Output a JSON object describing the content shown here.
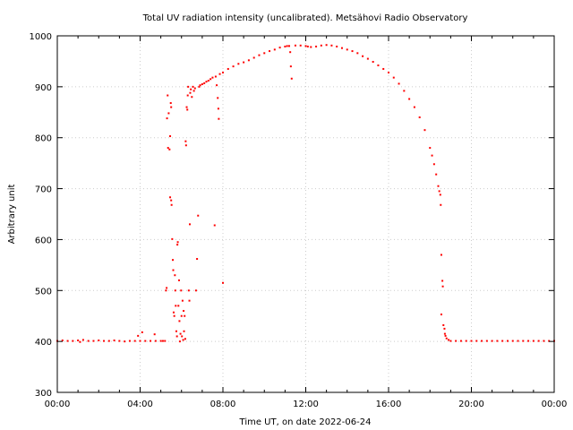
{
  "chart_data": {
    "type": "scatter",
    "title": "Total UV radiation intensity (uncalibrated). Metsähovi Radio Observatory",
    "xlabel": "Time UT, on date 2022-06-24",
    "ylabel": "Arbitrary unit",
    "xlim": [
      0,
      24
    ],
    "ylim": [
      300,
      1000
    ],
    "x_ticks": [
      0,
      4,
      8,
      12,
      16,
      20,
      24
    ],
    "x_tick_labels": [
      "00:00",
      "04:00",
      "08:00",
      "12:00",
      "16:00",
      "20:00",
      "00:00"
    ],
    "y_ticks": [
      300,
      400,
      500,
      600,
      700,
      800,
      900,
      1000
    ],
    "y_tick_labels": [
      "300",
      "400",
      "500",
      "600",
      "700",
      "800",
      "900",
      "1000"
    ],
    "grid": true,
    "legend": "none",
    "series_color": "#ff0000",
    "series": [
      {
        "points": [
          [
            0.0,
            401
          ],
          [
            0.25,
            402
          ],
          [
            0.5,
            401
          ],
          [
            0.75,
            401
          ],
          [
            1.0,
            402
          ],
          [
            1.1,
            399
          ],
          [
            1.25,
            403
          ],
          [
            1.5,
            401
          ],
          [
            1.75,
            401
          ],
          [
            2.0,
            402
          ],
          [
            2.25,
            401
          ],
          [
            2.5,
            401
          ],
          [
            2.75,
            402
          ],
          [
            3.0,
            401
          ],
          [
            3.25,
            400
          ],
          [
            3.5,
            401
          ],
          [
            3.75,
            401
          ],
          [
            4.0,
            401
          ],
          [
            4.25,
            401
          ],
          [
            4.5,
            401
          ],
          [
            4.75,
            401
          ],
          [
            5.0,
            401
          ],
          [
            5.1,
            401
          ],
          [
            5.2,
            401
          ],
          [
            3.9,
            411
          ],
          [
            4.1,
            418
          ],
          [
            4.7,
            414
          ],
          [
            5.25,
            500
          ],
          [
            5.28,
            505
          ],
          [
            5.3,
            838
          ],
          [
            5.33,
            883
          ],
          [
            5.35,
            780
          ],
          [
            5.38,
            848
          ],
          [
            5.42,
            777
          ],
          [
            5.45,
            803
          ],
          [
            5.48,
            868
          ],
          [
            5.5,
            860
          ],
          [
            5.45,
            683
          ],
          [
            5.5,
            677
          ],
          [
            5.52,
            668
          ],
          [
            5.55,
            601
          ],
          [
            5.58,
            560
          ],
          [
            5.6,
            540
          ],
          [
            5.62,
            457
          ],
          [
            5.65,
            450
          ],
          [
            5.68,
            530
          ],
          [
            5.7,
            500
          ],
          [
            5.72,
            470
          ],
          [
            5.75,
            420
          ],
          [
            5.78,
            410
          ],
          [
            5.8,
            590
          ],
          [
            5.82,
            595
          ],
          [
            5.85,
            470
          ],
          [
            5.88,
            520
          ],
          [
            5.9,
            440
          ],
          [
            5.92,
            400
          ],
          [
            5.95,
            415
          ],
          [
            5.98,
            500
          ],
          [
            6.0,
            450
          ],
          [
            6.02,
            410
          ],
          [
            6.05,
            480
          ],
          [
            6.08,
            403
          ],
          [
            6.1,
            460
          ],
          [
            6.12,
            420
          ],
          [
            6.15,
            450
          ],
          [
            6.18,
            405
          ],
          [
            6.2,
            793
          ],
          [
            6.22,
            785
          ],
          [
            6.25,
            860
          ],
          [
            6.28,
            855
          ],
          [
            6.3,
            883
          ],
          [
            6.32,
            900
          ],
          [
            6.35,
            500
          ],
          [
            6.38,
            480
          ],
          [
            6.4,
            630
          ],
          [
            6.42,
            888
          ],
          [
            6.45,
            895
          ],
          [
            6.5,
            880
          ],
          [
            6.55,
            900
          ],
          [
            6.6,
            892
          ],
          [
            6.65,
            897
          ],
          [
            6.7,
            500
          ],
          [
            6.75,
            562
          ],
          [
            6.8,
            647
          ],
          [
            6.85,
            900
          ],
          [
            6.9,
            903
          ],
          [
            7.0,
            905
          ],
          [
            7.1,
            907
          ],
          [
            7.2,
            910
          ],
          [
            7.3,
            912
          ],
          [
            7.4,
            915
          ],
          [
            7.5,
            918
          ],
          [
            7.6,
            628
          ],
          [
            7.65,
            920
          ],
          [
            7.7,
            903
          ],
          [
            7.75,
            878
          ],
          [
            7.78,
            857
          ],
          [
            7.8,
            837
          ],
          [
            7.85,
            925
          ],
          [
            8.0,
            515
          ],
          [
            8.0,
            928
          ],
          [
            8.25,
            935
          ],
          [
            8.5,
            940
          ],
          [
            8.75,
            945
          ],
          [
            9.0,
            948
          ],
          [
            9.25,
            952
          ],
          [
            9.5,
            957
          ],
          [
            9.75,
            962
          ],
          [
            10.0,
            966
          ],
          [
            10.25,
            970
          ],
          [
            10.5,
            973
          ],
          [
            10.75,
            977
          ],
          [
            11.0,
            979
          ],
          [
            11.1,
            980
          ],
          [
            11.2,
            980
          ],
          [
            11.25,
            968
          ],
          [
            11.28,
            940
          ],
          [
            11.32,
            916
          ],
          [
            11.5,
            981
          ],
          [
            11.75,
            981
          ],
          [
            12.0,
            980
          ],
          [
            12.1,
            979
          ],
          [
            12.25,
            978
          ],
          [
            12.5,
            979
          ],
          [
            12.75,
            981
          ],
          [
            13.0,
            982
          ],
          [
            13.25,
            981
          ],
          [
            13.5,
            979
          ],
          [
            13.75,
            976
          ],
          [
            14.0,
            973
          ],
          [
            14.25,
            970
          ],
          [
            14.5,
            966
          ],
          [
            14.75,
            960
          ],
          [
            15.0,
            955
          ],
          [
            15.25,
            949
          ],
          [
            15.5,
            942
          ],
          [
            15.75,
            935
          ],
          [
            16.0,
            928
          ],
          [
            16.25,
            918
          ],
          [
            16.5,
            906
          ],
          [
            16.75,
            892
          ],
          [
            17.0,
            876
          ],
          [
            17.25,
            860
          ],
          [
            17.5,
            840
          ],
          [
            17.75,
            815
          ],
          [
            18.0,
            780
          ],
          [
            18.1,
            765
          ],
          [
            18.2,
            748
          ],
          [
            18.3,
            728
          ],
          [
            18.4,
            705
          ],
          [
            18.45,
            695
          ],
          [
            18.5,
            688
          ],
          [
            18.52,
            668
          ],
          [
            18.55,
            570
          ],
          [
            18.6,
            519
          ],
          [
            18.62,
            508
          ],
          [
            18.55,
            453
          ],
          [
            18.65,
            432
          ],
          [
            18.7,
            425
          ],
          [
            18.72,
            415
          ],
          [
            18.75,
            411
          ],
          [
            18.8,
            406
          ],
          [
            18.9,
            403
          ],
          [
            19.0,
            401
          ],
          [
            19.25,
            401
          ],
          [
            19.5,
            401
          ],
          [
            19.75,
            401
          ],
          [
            20.0,
            401
          ],
          [
            20.25,
            401
          ],
          [
            20.5,
            401
          ],
          [
            20.75,
            401
          ],
          [
            21.0,
            401
          ],
          [
            21.25,
            401
          ],
          [
            21.5,
            401
          ],
          [
            21.75,
            401
          ],
          [
            22.0,
            401
          ],
          [
            22.25,
            401
          ],
          [
            22.5,
            401
          ],
          [
            22.75,
            401
          ],
          [
            23.0,
            401
          ],
          [
            23.25,
            401
          ],
          [
            23.5,
            401
          ],
          [
            23.75,
            401
          ],
          [
            24.0,
            401
          ]
        ]
      }
    ]
  }
}
